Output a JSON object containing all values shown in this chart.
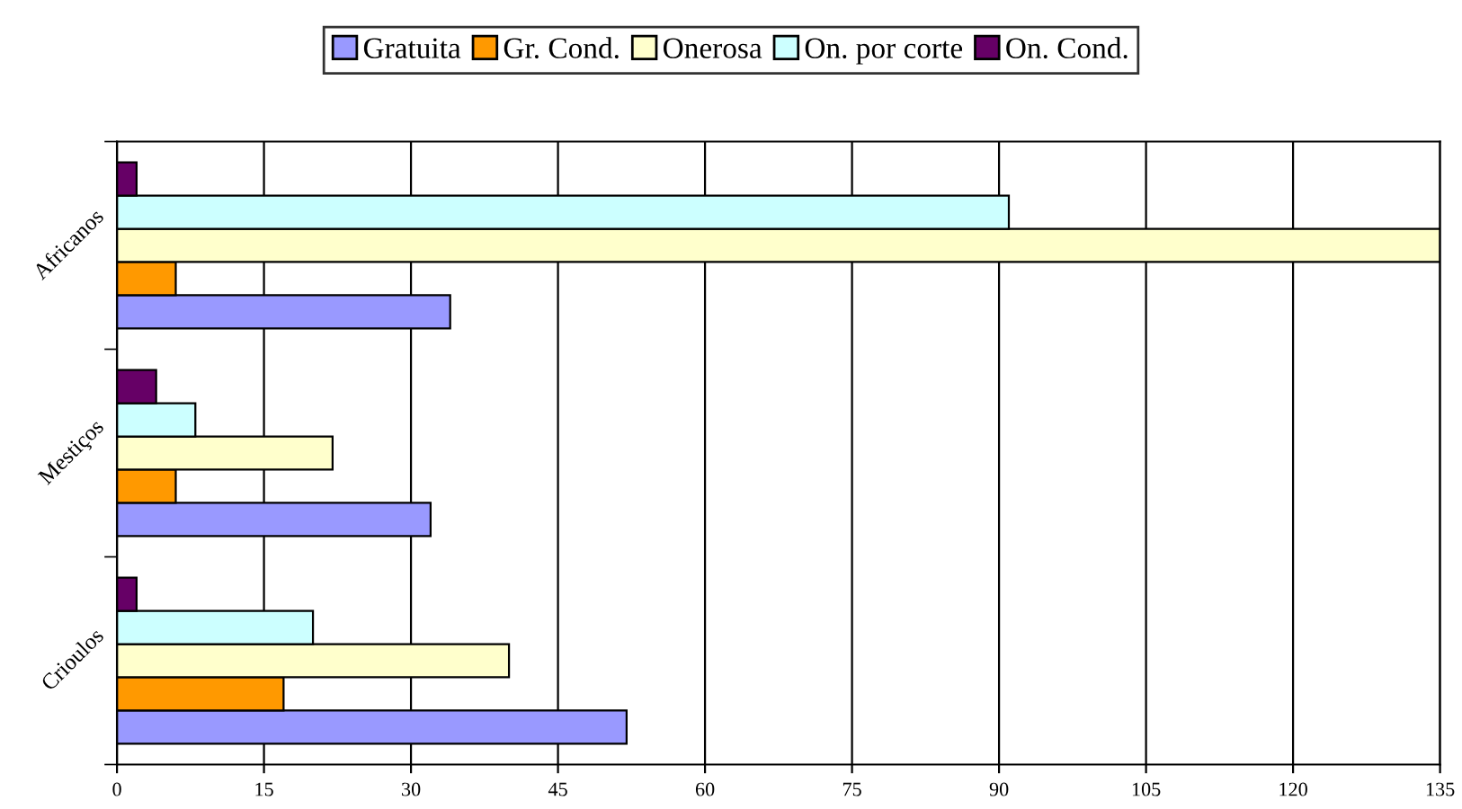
{
  "chart_data": {
    "type": "bar",
    "orientation": "horizontal",
    "categories": [
      "Africanos",
      "Mestiços",
      "Crioulos"
    ],
    "series": [
      {
        "name": "Gratuita",
        "color": "#9999ff",
        "values": [
          34,
          32,
          52
        ]
      },
      {
        "name": "Gr. Cond.",
        "color": "#ff9900",
        "values": [
          6,
          6,
          17
        ]
      },
      {
        "name": "Onerosa",
        "color": "#ffffcc",
        "values": [
          135,
          22,
          40
        ]
      },
      {
        "name": "On. por corte",
        "color": "#ccffff",
        "values": [
          91,
          8,
          20
        ]
      },
      {
        "name": "On. Cond.",
        "color": "#660066",
        "values": [
          2,
          4,
          2
        ]
      }
    ],
    "xlim": [
      0,
      135
    ],
    "xticks": [
      0,
      15,
      30,
      45,
      60,
      75,
      90,
      105,
      120,
      135
    ],
    "grid": "x",
    "legend": "top"
  }
}
